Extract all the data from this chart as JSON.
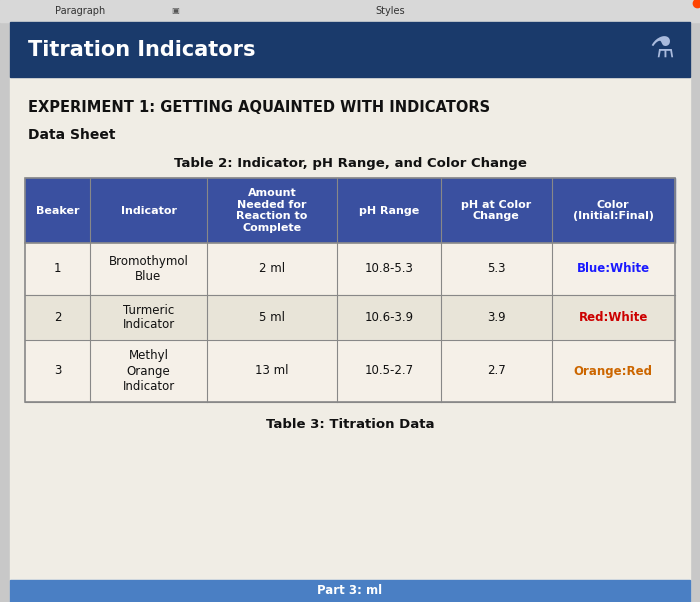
{
  "title_bar_text": "Titration Indicators",
  "title_bar_bg": "#1a3a6b",
  "title_bar_text_color": "#ffffff",
  "experiment_title": "EXPERIMENT 1: GETTING AQUAINTED WITH INDICATORS",
  "data_sheet_label": "Data Sheet",
  "table2_title": "Table 2: Indicator, pH Range, and Color Change",
  "table3_title": "Table 3: Titration Data",
  "part3_label": "Part 3: ml",
  "header_bg": "#3a50a0",
  "header_text_color": "#ffffff",
  "row_bg_odd": "#f5f0e8",
  "row_bg_even": "#e8e4d8",
  "border_color": "#888888",
  "col_headers": [
    "Beaker",
    "Indicator",
    "Amount\nNeeded for\nReaction to\nComplete",
    "pH Range",
    "pH at Color\nChange",
    "Color\n(Initial:Final)"
  ],
  "rows": [
    [
      "1",
      "Bromothymol\nBlue",
      "2 ml",
      "10.8-5.3",
      "5.3",
      "Blue:White"
    ],
    [
      "2",
      "Turmeric\nIndicator",
      "5 ml",
      "10.6-3.9",
      "3.9",
      "Red:White"
    ],
    [
      "3",
      "Methyl\nOrange\nIndicator",
      "13 ml",
      "10.5-2.7",
      "2.7",
      "Orange:Red"
    ]
  ],
  "color_text_colors": [
    "#1a1aff",
    "#cc0000",
    "#cc6600"
  ],
  "top_bar_bg": "#d8d8d8",
  "top_bar_text1": "Paragraph",
  "top_bar_text2": "Styles",
  "bottom_bar_bg": "#4a7fc4",
  "page_bg": "#c8c8c8",
  "content_bg": "#f0ede5",
  "figsize": [
    7.0,
    6.02
  ],
  "dpi": 100
}
